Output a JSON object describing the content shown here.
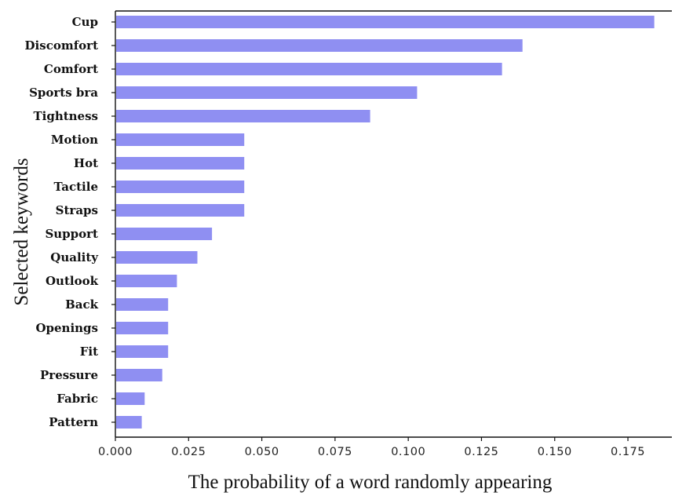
{
  "chart_data": {
    "type": "bar",
    "orientation": "horizontal",
    "categories": [
      "Cup",
      "Discomfort",
      "Comfort",
      "Sports bra",
      "Tightness",
      "Motion",
      "Hot",
      "Tactile",
      "Straps",
      "Support",
      "Quality",
      "Outlook",
      "Back",
      "Openings",
      "Fit",
      "Pressure",
      "Fabric",
      "Pattern"
    ],
    "values": [
      0.184,
      0.139,
      0.132,
      0.103,
      0.087,
      0.044,
      0.044,
      0.044,
      0.044,
      0.033,
      0.028,
      0.021,
      0.018,
      0.018,
      0.018,
      0.016,
      0.01,
      0.009
    ],
    "xlabel": "The probability of a word randomly appearing",
    "ylabel": "Selected keywords",
    "xlim": [
      0,
      0.19
    ],
    "xticks": [
      0.0,
      0.025,
      0.05,
      0.075,
      0.1,
      0.125,
      0.15,
      0.175
    ],
    "xtick_labels": [
      "0.000",
      "0.025",
      "0.050",
      "0.075",
      "0.100",
      "0.125",
      "0.150",
      "0.175"
    ],
    "bar_color": "#8f8ff2",
    "grid": false,
    "legend": "none"
  }
}
